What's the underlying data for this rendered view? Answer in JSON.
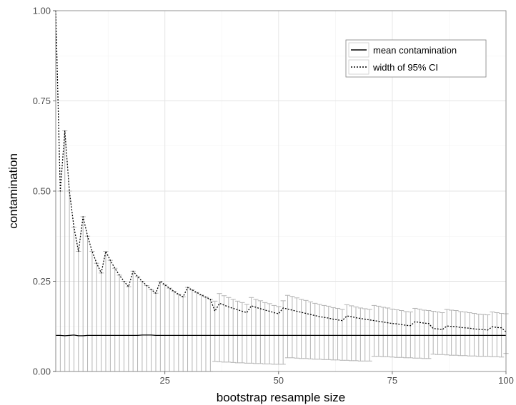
{
  "chart_data": {
    "type": "line",
    "xlabel": "bootstrap resample size",
    "ylabel": "contamination",
    "xlim": [
      1,
      100
    ],
    "ylim": [
      0,
      1
    ],
    "x_ticks": [
      25,
      50,
      75,
      100
    ],
    "y_ticks": [
      0,
      0.25,
      0.5,
      0.75,
      1
    ],
    "y_tick_labels": [
      "0.00",
      "0.25",
      "0.50",
      "0.75",
      "1.00"
    ],
    "grid": true,
    "legend_position": "top-right",
    "series": [
      {
        "name": "mean contamination",
        "style": "solid",
        "color": "#000000",
        "x": [
          1,
          2,
          3,
          4,
          5,
          6,
          7,
          8,
          9,
          10,
          11,
          12,
          13,
          14,
          15,
          16,
          17,
          18,
          19,
          20,
          21,
          22,
          23,
          24,
          25,
          26,
          27,
          28,
          29,
          30,
          31,
          32,
          33,
          34,
          35,
          36,
          37,
          38,
          39,
          40,
          41,
          42,
          43,
          44,
          45,
          46,
          47,
          48,
          49,
          50,
          51,
          52,
          53,
          54,
          55,
          56,
          57,
          58,
          59,
          60,
          61,
          62,
          63,
          64,
          65,
          66,
          67,
          68,
          69,
          70,
          71,
          72,
          73,
          74,
          75,
          76,
          77,
          78,
          79,
          80,
          81,
          82,
          83,
          84,
          85,
          86,
          87,
          88,
          89,
          90,
          91,
          92,
          93,
          94,
          95,
          96,
          97,
          98,
          99,
          100
        ],
        "values": [
          0.1,
          0.1,
          0.099,
          0.1,
          0.101,
          0.099,
          0.099,
          0.1,
          0.1,
          0.1,
          0.1,
          0.1,
          0.1,
          0.1,
          0.1,
          0.1,
          0.1,
          0.1,
          0.1,
          0.101,
          0.101,
          0.101,
          0.1,
          0.1,
          0.1,
          0.1,
          0.1,
          0.1,
          0.1,
          0.1,
          0.1,
          0.1,
          0.1,
          0.1,
          0.1,
          0.1,
          0.1,
          0.1,
          0.1,
          0.1,
          0.1,
          0.1,
          0.1,
          0.1,
          0.1,
          0.1,
          0.1,
          0.1,
          0.1,
          0.1,
          0.1,
          0.1,
          0.1,
          0.1,
          0.1,
          0.1,
          0.1,
          0.1,
          0.1,
          0.1,
          0.1,
          0.1,
          0.1,
          0.1,
          0.1,
          0.1,
          0.1,
          0.1,
          0.1,
          0.1,
          0.1,
          0.1,
          0.1,
          0.1,
          0.1,
          0.1,
          0.1,
          0.1,
          0.1,
          0.1,
          0.1,
          0.1,
          0.1,
          0.1,
          0.1,
          0.1,
          0.1,
          0.1,
          0.1,
          0.1,
          0.1,
          0.1,
          0.1,
          0.1,
          0.1,
          0.1,
          0.1,
          0.1,
          0.1,
          0.1
        ]
      },
      {
        "name": "width of 95% CI",
        "style": "dotted",
        "color": "#000000",
        "x": [
          1,
          2,
          3,
          4,
          5,
          6,
          7,
          8,
          9,
          10,
          11,
          12,
          13,
          14,
          15,
          16,
          17,
          18,
          19,
          20,
          21,
          22,
          23,
          24,
          25,
          26,
          27,
          28,
          29,
          30,
          31,
          32,
          33,
          34,
          35,
          36,
          37,
          38,
          39,
          40,
          41,
          42,
          43,
          44,
          45,
          46,
          47,
          48,
          49,
          50,
          51,
          52,
          53,
          54,
          55,
          56,
          57,
          58,
          59,
          60,
          61,
          62,
          63,
          64,
          65,
          66,
          67,
          68,
          69,
          70,
          71,
          72,
          73,
          74,
          75,
          76,
          77,
          78,
          79,
          80,
          81,
          82,
          83,
          84,
          85,
          86,
          87,
          88,
          89,
          90,
          91,
          92,
          93,
          94,
          95,
          96,
          97,
          98,
          99,
          100
        ],
        "values": [
          1.0,
          0.5,
          0.667,
          0.5,
          0.4,
          0.333,
          0.429,
          0.375,
          0.333,
          0.3,
          0.273,
          0.333,
          0.308,
          0.286,
          0.267,
          0.25,
          0.235,
          0.278,
          0.263,
          0.25,
          0.238,
          0.227,
          0.217,
          0.25,
          0.24,
          0.231,
          0.222,
          0.214,
          0.207,
          0.233,
          0.226,
          0.219,
          0.212,
          0.206,
          0.2,
          0.167,
          0.189,
          0.184,
          0.179,
          0.175,
          0.171,
          0.167,
          0.163,
          0.182,
          0.178,
          0.174,
          0.17,
          0.167,
          0.163,
          0.16,
          0.176,
          0.173,
          0.17,
          0.167,
          0.164,
          0.161,
          0.158,
          0.155,
          0.152,
          0.15,
          0.148,
          0.145,
          0.143,
          0.141,
          0.154,
          0.152,
          0.149,
          0.147,
          0.145,
          0.143,
          0.141,
          0.139,
          0.137,
          0.135,
          0.133,
          0.132,
          0.13,
          0.128,
          0.127,
          0.138,
          0.136,
          0.134,
          0.133,
          0.119,
          0.118,
          0.116,
          0.126,
          0.125,
          0.124,
          0.122,
          0.121,
          0.12,
          0.118,
          0.117,
          0.116,
          0.115,
          0.124,
          0.122,
          0.121,
          0.11
        ]
      },
      {
        "name": "",
        "type": "errorbar",
        "color": "#b3b3b3",
        "x": [
          1,
          2,
          3,
          4,
          5,
          6,
          7,
          8,
          9,
          10,
          11,
          12,
          13,
          14,
          15,
          16,
          17,
          18,
          19,
          20,
          21,
          22,
          23,
          24,
          25,
          26,
          27,
          28,
          29,
          30,
          31,
          32,
          33,
          34,
          35,
          36,
          37,
          38,
          39,
          40,
          41,
          42,
          43,
          44,
          45,
          46,
          47,
          48,
          49,
          50,
          51,
          52,
          53,
          54,
          55,
          56,
          57,
          58,
          59,
          60,
          61,
          62,
          63,
          64,
          65,
          66,
          67,
          68,
          69,
          70,
          71,
          72,
          73,
          74,
          75,
          76,
          77,
          78,
          79,
          80,
          81,
          82,
          83,
          84,
          85,
          86,
          87,
          88,
          89,
          90,
          91,
          92,
          93,
          94,
          95,
          96,
          97,
          98,
          99,
          100
        ],
        "lower": [
          0.0,
          0.0,
          0.0,
          0.0,
          0.0,
          0.0,
          0.0,
          0.0,
          0.0,
          0.0,
          0.0,
          0.0,
          0.0,
          0.0,
          0.0,
          0.0,
          0.0,
          0.0,
          0.0,
          0.0,
          0.0,
          0.0,
          0.0,
          0.0,
          0.0,
          0.0,
          0.0,
          0.0,
          0.0,
          0.0,
          0.0,
          0.0,
          0.0,
          0.0,
          0.0,
          0.028,
          0.027,
          0.026,
          0.026,
          0.025,
          0.024,
          0.024,
          0.023,
          0.023,
          0.022,
          0.022,
          0.021,
          0.021,
          0.02,
          0.02,
          0.02,
          0.038,
          0.038,
          0.037,
          0.036,
          0.036,
          0.035,
          0.034,
          0.034,
          0.033,
          0.033,
          0.032,
          0.032,
          0.031,
          0.031,
          0.03,
          0.03,
          0.029,
          0.029,
          0.029,
          0.042,
          0.042,
          0.041,
          0.041,
          0.04,
          0.039,
          0.039,
          0.038,
          0.038,
          0.037,
          0.037,
          0.036,
          0.036,
          0.048,
          0.047,
          0.047,
          0.046,
          0.045,
          0.045,
          0.044,
          0.044,
          0.043,
          0.043,
          0.042,
          0.042,
          0.042,
          0.041,
          0.041,
          0.04,
          0.05
        ],
        "upper": [
          1.0,
          0.5,
          0.667,
          0.5,
          0.4,
          0.333,
          0.429,
          0.375,
          0.333,
          0.3,
          0.273,
          0.333,
          0.308,
          0.286,
          0.267,
          0.25,
          0.235,
          0.278,
          0.263,
          0.25,
          0.238,
          0.227,
          0.217,
          0.25,
          0.24,
          0.231,
          0.222,
          0.214,
          0.207,
          0.233,
          0.226,
          0.219,
          0.212,
          0.206,
          0.2,
          0.195,
          0.216,
          0.21,
          0.205,
          0.2,
          0.195,
          0.191,
          0.186,
          0.205,
          0.2,
          0.196,
          0.191,
          0.188,
          0.183,
          0.18,
          0.196,
          0.211,
          0.208,
          0.204,
          0.2,
          0.197,
          0.193,
          0.189,
          0.186,
          0.183,
          0.181,
          0.177,
          0.175,
          0.172,
          0.185,
          0.182,
          0.179,
          0.176,
          0.174,
          0.172,
          0.183,
          0.181,
          0.178,
          0.176,
          0.173,
          0.171,
          0.169,
          0.166,
          0.165,
          0.175,
          0.173,
          0.17,
          0.169,
          0.167,
          0.165,
          0.163,
          0.172,
          0.17,
          0.169,
          0.166,
          0.165,
          0.163,
          0.161,
          0.159,
          0.158,
          0.157,
          0.165,
          0.163,
          0.161,
          0.16
        ]
      }
    ]
  }
}
